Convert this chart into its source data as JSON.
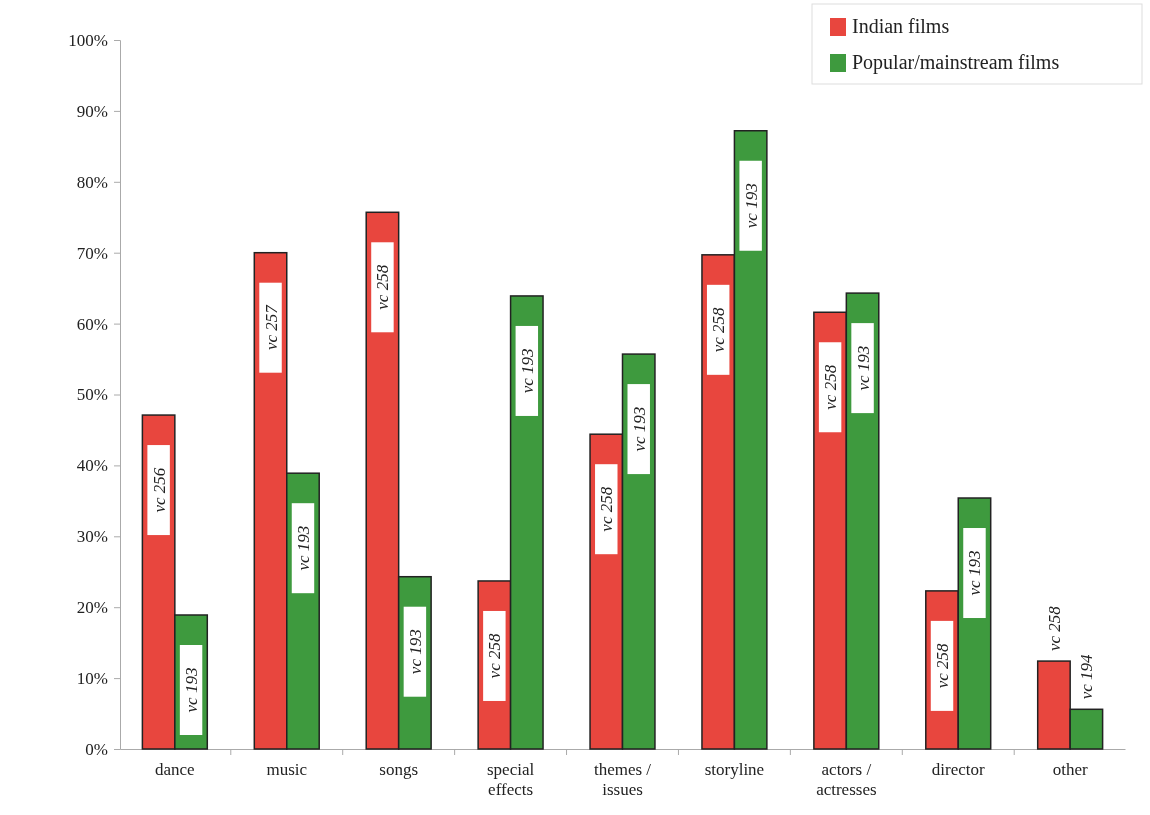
{
  "chart_data": {
    "type": "bar",
    "categories": [
      "dance",
      "music",
      "songs",
      "special effects",
      "themes / issues",
      "storyline",
      "actors / actresses",
      "director",
      "other"
    ],
    "series": [
      {
        "name": "Indian films",
        "color": "#e8463e",
        "values": [
          47.1,
          70.0,
          75.7,
          23.7,
          44.4,
          69.7,
          61.6,
          22.3,
          12.4
        ],
        "value_labels": [
          "vc 256",
          "vc 257",
          "vc 258",
          "vc 258",
          "vc 258",
          "vc 258",
          "vc 258",
          "vc 258",
          "vc 258"
        ]
      },
      {
        "name": "Popular/mainstream films",
        "color": "#3e9a3e",
        "values": [
          18.9,
          38.9,
          24.3,
          63.9,
          55.7,
          87.2,
          64.3,
          35.4,
          5.6
        ],
        "value_labels": [
          "vc 193",
          "vc 193",
          "vc 193",
          "vc 193",
          "vc 193",
          "vc 193",
          "vc 193",
          "vc 193",
          "vc 194"
        ]
      }
    ],
    "ylim": [
      0,
      100
    ],
    "yticks": [
      {
        "value": 0,
        "label": "0%"
      },
      {
        "value": 10,
        "label": "10%"
      },
      {
        "value": 20,
        "label": "20%"
      },
      {
        "value": 30,
        "label": "30%"
      },
      {
        "value": 40,
        "label": "40%"
      },
      {
        "value": 50,
        "label": "50%"
      },
      {
        "value": 60,
        "label": "60%"
      },
      {
        "value": 70,
        "label": "70%"
      },
      {
        "value": 80,
        "label": "80%"
      },
      {
        "value": 90,
        "label": "90%"
      },
      {
        "value": 100,
        "label": "100%"
      }
    ],
    "grid": false,
    "legend": "top right"
  }
}
